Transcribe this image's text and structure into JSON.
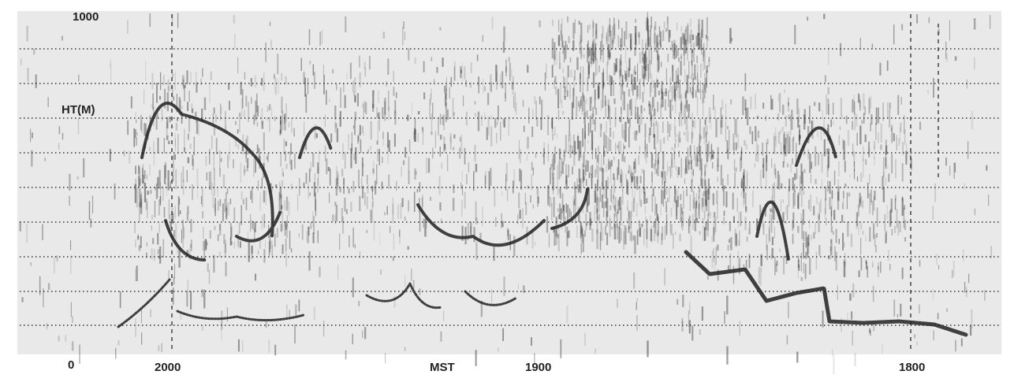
{
  "labels": {
    "top": "1000",
    "axis_title": "HT(M)",
    "bottom": "0",
    "x_title": "MST",
    "x_ticks": [
      "2000",
      "1900",
      "1800"
    ]
  }
}
